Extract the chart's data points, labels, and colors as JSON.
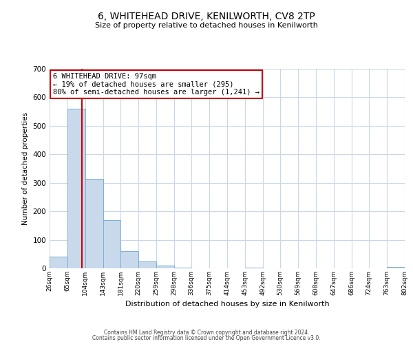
{
  "title": "6, WHITEHEAD DRIVE, KENILWORTH, CV8 2TP",
  "subtitle": "Size of property relative to detached houses in Kenilworth",
  "xlabel": "Distribution of detached houses by size in Kenilworth",
  "ylabel": "Number of detached properties",
  "bar_color": "#c9d9ec",
  "bar_edge_color": "#7aafd4",
  "vline_color": "#cc0000",
  "vline_x": 97,
  "annotation_line1": "6 WHITEHEAD DRIVE: 97sqm",
  "annotation_line2": "← 19% of detached houses are smaller (295)",
  "annotation_line3": "80% of semi-detached houses are larger (1,241) →",
  "annotation_box_color": "#cc0000",
  "bin_edges": [
    26,
    65,
    104,
    143,
    181,
    220,
    259,
    298,
    336,
    375,
    414,
    453,
    492,
    530,
    569,
    608,
    647,
    686,
    724,
    763,
    802
  ],
  "bin_heights": [
    42,
    560,
    315,
    168,
    60,
    25,
    10,
    3,
    0,
    0,
    0,
    2,
    0,
    0,
    0,
    0,
    0,
    0,
    0,
    5
  ],
  "ylim": [
    0,
    700
  ],
  "yticks": [
    0,
    100,
    200,
    300,
    400,
    500,
    600,
    700
  ],
  "footer1": "Contains HM Land Registry data © Crown copyright and database right 2024.",
  "footer2": "Contains public sector information licensed under the Open Government Licence v3.0.",
  "background_color": "#ffffff",
  "grid_color": "#c8d8e8"
}
